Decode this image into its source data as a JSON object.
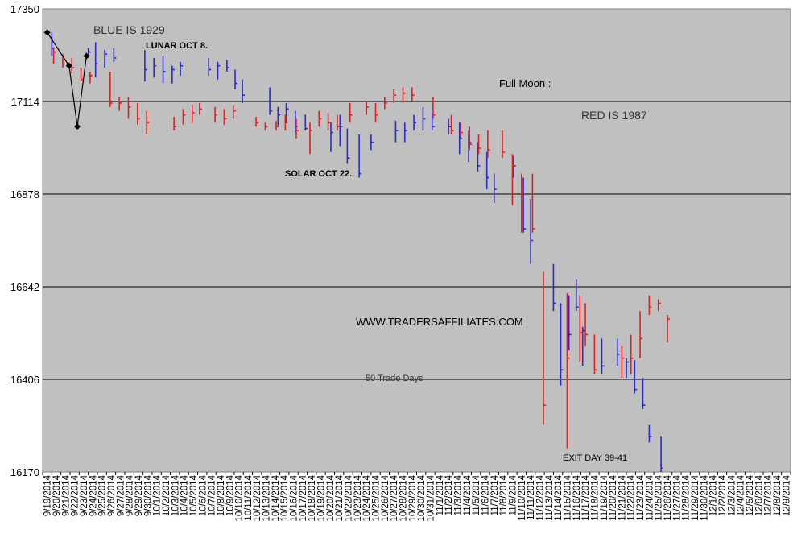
{
  "chart_data": {
    "type": "ohlc",
    "title": "",
    "xlabel": "",
    "ylabel": "",
    "ylim": [
      16170,
      17350
    ],
    "y_ticks": [
      "17350",
      "17114",
      "16878",
      "16642",
      "16406",
      "16170"
    ],
    "y_gridlines": [
      17114,
      16878,
      16642,
      16406
    ],
    "grid": true,
    "background": "#c0c0c0",
    "colors": {
      "blue": "#2a2acc",
      "red": "#e02020",
      "annotation": "#000000"
    },
    "x_labels": [
      "9/19/2014",
      "9/20/2014",
      "9/21/2014",
      "9/22/2014",
      "9/23/2014",
      "9/24/2014",
      "9/25/2014",
      "9/26/2014",
      "9/27/2014",
      "9/28/2014",
      "9/29/2014",
      "9/30/2014",
      "10/1/2014",
      "10/2/2014",
      "10/3/2014",
      "10/4/2014",
      "10/5/2014",
      "10/6/2014",
      "10/7/2014",
      "10/8/2014",
      "10/9/2014",
      "10/10/2014",
      "10/11/2014",
      "10/12/2014",
      "10/13/2014",
      "10/14/2014",
      "10/15/2014",
      "10/16/2014",
      "10/17/2014",
      "10/18/2014",
      "10/19/2014",
      "10/20/2014",
      "10/21/2014",
      "10/22/2014",
      "10/23/2014",
      "10/24/2014",
      "10/25/2014",
      "10/26/2014",
      "10/27/2014",
      "10/28/2014",
      "10/29/2014",
      "10/30/2014",
      "10/31/2014",
      "11/1/2014",
      "11/2/2014",
      "11/3/2014",
      "11/4/2014",
      "11/5/2014",
      "11/6/2014",
      "11/7/2014",
      "11/8/2014",
      "11/9/2014",
      "11/10/2014",
      "11/11/2014",
      "11/12/2014",
      "11/13/2014",
      "11/14/2014",
      "11/15/2014",
      "11/16/2014",
      "11/17/2014",
      "11/18/2014",
      "11/19/2014",
      "11/20/2014",
      "11/21/2014",
      "11/22/2014",
      "11/23/2014",
      "11/24/2014",
      "11/25/2014",
      "11/26/2014",
      "11/27/2014",
      "11/28/2014",
      "11/29/2014",
      "11/30/2014",
      "12/1/2014",
      "12/2/2014",
      "12/3/2014",
      "12/4/2014",
      "12/5/2014",
      "12/6/2014",
      "12/7/2014",
      "12/8/2014",
      "12/9/2014"
    ],
    "series": [
      {
        "name": "BLUE IS 1929",
        "color": "blue",
        "bars": [
          {
            "x": 0.5,
            "high": 17290,
            "low": 17230,
            "close": 17250
          },
          {
            "x": 4.5,
            "high": 17250,
            "low": 17225,
            "close": 17240
          },
          {
            "x": 5.3,
            "high": 17265,
            "low": 17175,
            "close": 17210
          },
          {
            "x": 6.3,
            "high": 17245,
            "low": 17200,
            "close": 17235
          },
          {
            "x": 7.3,
            "high": 17250,
            "low": 17215,
            "close": 17225
          },
          {
            "x": 10.7,
            "high": 17245,
            "low": 17165,
            "close": 17195
          },
          {
            "x": 11.7,
            "high": 17225,
            "low": 17175,
            "close": 17205
          },
          {
            "x": 12.7,
            "high": 17230,
            "low": 17160,
            "close": 17190
          },
          {
            "x": 13.7,
            "high": 17205,
            "low": 17160,
            "close": 17195
          },
          {
            "x": 14.6,
            "high": 17215,
            "low": 17180,
            "close": 17205
          },
          {
            "x": 17.7,
            "high": 17225,
            "low": 17180,
            "close": 17195
          },
          {
            "x": 18.7,
            "high": 17215,
            "low": 17170,
            "close": 17205
          },
          {
            "x": 19.7,
            "high": 17220,
            "low": 17190,
            "close": 17200
          },
          {
            "x": 20.6,
            "high": 17195,
            "low": 17145,
            "close": 17160
          },
          {
            "x": 21.4,
            "high": 17170,
            "low": 17110,
            "close": 17130
          },
          {
            "x": 24.4,
            "high": 17150,
            "low": 17080,
            "close": 17090
          },
          {
            "x": 25.3,
            "high": 17100,
            "low": 17050,
            "close": 17080
          },
          {
            "x": 26.2,
            "high": 17110,
            "low": 17060,
            "close": 17095
          },
          {
            "x": 27.2,
            "high": 17090,
            "low": 17035,
            "close": 17050
          },
          {
            "x": 28.3,
            "high": 17080,
            "low": 17040,
            "close": 17045
          },
          {
            "x": 31.1,
            "high": 17060,
            "low": 16985,
            "close": 17035
          },
          {
            "x": 32.1,
            "high": 17080,
            "low": 17000,
            "close": 17050
          },
          {
            "x": 32.9,
            "high": 17045,
            "low": 16955,
            "close": 16970
          },
          {
            "x": 34.2,
            "high": 17030,
            "low": 16920,
            "close": 16930
          },
          {
            "x": 35.5,
            "high": 17030,
            "low": 16990,
            "close": 17010
          },
          {
            "x": 38.2,
            "high": 17065,
            "low": 17010,
            "close": 17040
          },
          {
            "x": 39.2,
            "high": 17060,
            "low": 17010,
            "close": 17040
          },
          {
            "x": 40.2,
            "high": 17080,
            "low": 17040,
            "close": 17060
          },
          {
            "x": 41.2,
            "high": 17100,
            "low": 17040,
            "close": 17070
          },
          {
            "x": 42.2,
            "high": 17085,
            "low": 17040,
            "close": 17050
          },
          {
            "x": 44.0,
            "high": 17070,
            "low": 17030,
            "close": 17050
          },
          {
            "x": 45.2,
            "high": 17060,
            "low": 16980,
            "close": 17020
          },
          {
            "x": 46.2,
            "high": 17040,
            "low": 16960,
            "close": 17010
          },
          {
            "x": 47.2,
            "high": 17010,
            "low": 16935,
            "close": 16950
          },
          {
            "x": 48.2,
            "high": 16985,
            "low": 16890,
            "close": 16920
          },
          {
            "x": 49.0,
            "high": 16930,
            "low": 16855,
            "close": 16890
          },
          {
            "x": 51.1,
            "high": 16975,
            "low": 16920,
            "close": 16950
          },
          {
            "x": 52.2,
            "high": 16920,
            "low": 16780,
            "close": 16790
          },
          {
            "x": 53.0,
            "high": 16865,
            "low": 16700,
            "close": 16760
          },
          {
            "x": 55.5,
            "high": 16700,
            "low": 16580,
            "close": 16600
          },
          {
            "x": 56.3,
            "high": 16600,
            "low": 16390,
            "close": 16430
          },
          {
            "x": 57.2,
            "high": 16620,
            "low": 16480,
            "close": 16520
          },
          {
            "x": 58.0,
            "high": 16660,
            "low": 16580,
            "close": 16590
          },
          {
            "x": 58.7,
            "high": 16540,
            "low": 16440,
            "close": 16530
          },
          {
            "x": 60.8,
            "high": 16510,
            "low": 16420,
            "close": 16440
          },
          {
            "x": 62.5,
            "high": 16510,
            "low": 16440,
            "close": 16470
          },
          {
            "x": 63.5,
            "high": 16460,
            "low": 16410,
            "close": 16450
          },
          {
            "x": 64.4,
            "high": 16455,
            "low": 16370,
            "close": 16380
          },
          {
            "x": 65.3,
            "high": 16410,
            "low": 16330,
            "close": 16340
          },
          {
            "x": 66.0,
            "high": 16290,
            "low": 16245,
            "close": 16260
          },
          {
            "x": 67.3,
            "high": 16260,
            "low": 16170,
            "close": 16180
          }
        ]
      },
      {
        "name": "RED IS 1987",
        "color": "red",
        "bars": [
          {
            "x": 0.7,
            "high": 17250,
            "low": 17210,
            "close": 17240
          },
          {
            "x": 1.7,
            "high": 17235,
            "low": 17200,
            "close": 17220
          },
          {
            "x": 2.7,
            "high": 17225,
            "low": 17185,
            "close": 17200
          },
          {
            "x": 3.7,
            "high": 17200,
            "low": 17165,
            "close": 17170
          },
          {
            "x": 4.7,
            "high": 17190,
            "low": 17160,
            "close": 17180
          },
          {
            "x": 6.9,
            "high": 17190,
            "low": 17100,
            "close": 17110
          },
          {
            "x": 7.9,
            "high": 17125,
            "low": 17090,
            "close": 17110
          },
          {
            "x": 8.9,
            "high": 17125,
            "low": 17070,
            "close": 17100
          },
          {
            "x": 9.9,
            "high": 17110,
            "low": 17055,
            "close": 17070
          },
          {
            "x": 10.9,
            "high": 17090,
            "low": 17030,
            "close": 17060
          },
          {
            "x": 13.9,
            "high": 17075,
            "low": 17040,
            "close": 17050
          },
          {
            "x": 14.9,
            "high": 17095,
            "low": 17055,
            "close": 17080
          },
          {
            "x": 15.9,
            "high": 17105,
            "low": 17060,
            "close": 17085
          },
          {
            "x": 16.7,
            "high": 17110,
            "low": 17080,
            "close": 17095
          },
          {
            "x": 18.4,
            "high": 17100,
            "low": 17060,
            "close": 17080
          },
          {
            "x": 19.4,
            "high": 17095,
            "low": 17055,
            "close": 17070
          },
          {
            "x": 20.4,
            "high": 17105,
            "low": 17070,
            "close": 17090
          },
          {
            "x": 22.9,
            "high": 17075,
            "low": 17050,
            "close": 17060
          },
          {
            "x": 23.9,
            "high": 17060,
            "low": 17040,
            "close": 17050
          },
          {
            "x": 25.1,
            "high": 17065,
            "low": 17040,
            "close": 17050
          },
          {
            "x": 26.1,
            "high": 17080,
            "low": 17040,
            "close": 17060
          },
          {
            "x": 27.3,
            "high": 17070,
            "low": 17020,
            "close": 17040
          },
          {
            "x": 28.8,
            "high": 17060,
            "low": 16980,
            "close": 17040
          },
          {
            "x": 29.8,
            "high": 17090,
            "low": 17050,
            "close": 17070
          },
          {
            "x": 30.8,
            "high": 17085,
            "low": 17040,
            "close": 17060
          },
          {
            "x": 31.8,
            "high": 17080,
            "low": 17040,
            "close": 17050
          },
          {
            "x": 33.2,
            "high": 17110,
            "low": 17060,
            "close": 17080
          },
          {
            "x": 35.0,
            "high": 17115,
            "low": 17080,
            "close": 17100
          },
          {
            "x": 36.0,
            "high": 17110,
            "low": 17060,
            "close": 17080
          },
          {
            "x": 37.0,
            "high": 17125,
            "low": 17095,
            "close": 17110
          },
          {
            "x": 38.0,
            "high": 17145,
            "low": 17110,
            "close": 17130
          },
          {
            "x": 39.0,
            "high": 17150,
            "low": 17110,
            "close": 17135
          },
          {
            "x": 40.0,
            "high": 17150,
            "low": 17115,
            "close": 17130
          },
          {
            "x": 42.3,
            "high": 17125,
            "low": 17070,
            "close": 17080
          },
          {
            "x": 44.3,
            "high": 17080,
            "low": 17030,
            "close": 17040
          },
          {
            "x": 45.3,
            "high": 17060,
            "low": 17020,
            "close": 17035
          },
          {
            "x": 46.3,
            "high": 17050,
            "low": 16990,
            "close": 17005
          },
          {
            "x": 47.3,
            "high": 17030,
            "low": 16980,
            "close": 16995
          },
          {
            "x": 48.3,
            "high": 17040,
            "low": 16970,
            "close": 16990
          },
          {
            "x": 49.9,
            "high": 17040,
            "low": 16970,
            "close": 16985
          },
          {
            "x": 51.0,
            "high": 16980,
            "low": 16850,
            "close": 16950
          },
          {
            "x": 52.0,
            "high": 16930,
            "low": 16780,
            "close": 16880
          },
          {
            "x": 53.2,
            "high": 16930,
            "low": 16780,
            "close": 16790
          },
          {
            "x": 54.4,
            "high": 16680,
            "low": 16290,
            "close": 16340
          },
          {
            "x": 57.0,
            "high": 16625,
            "low": 16230,
            "close": 16460
          },
          {
            "x": 58.4,
            "high": 16620,
            "low": 16450,
            "close": 16525
          },
          {
            "x": 59.0,
            "high": 16600,
            "low": 16490,
            "close": 16520
          },
          {
            "x": 60.0,
            "high": 16520,
            "low": 16420,
            "close": 16430
          },
          {
            "x": 63.0,
            "high": 16490,
            "low": 16410,
            "close": 16460
          },
          {
            "x": 64.0,
            "high": 16520,
            "low": 16420,
            "close": 16460
          },
          {
            "x": 65.0,
            "high": 16580,
            "low": 16460,
            "close": 16510
          },
          {
            "x": 66.0,
            "high": 16620,
            "low": 16570,
            "close": 16590
          },
          {
            "x": 67.0,
            "high": 16610,
            "low": 16580,
            "close": 16600
          },
          {
            "x": 68.0,
            "high": 16570,
            "low": 16500,
            "close": 16560
          }
        ]
      }
    ],
    "overlay_line": [
      {
        "x": 0.0,
        "y": 17290
      },
      {
        "x": 2.4,
        "y": 17205
      },
      {
        "x": 3.3,
        "y": 17050
      },
      {
        "x": 4.3,
        "y": 17230
      }
    ],
    "annotations": {
      "blue_label": "BLUE IS 1929",
      "lunar": "LUNAR OCT 8.",
      "full_moon": "Full Moon :",
      "red_label": "RED IS 1987",
      "solar": "SOLAR OCT 22.",
      "website": "WWW.TRADERSAFFILIATES.COM",
      "trade_days": "50 Trade Days",
      "exit_day": "EXIT DAY 39-41"
    }
  }
}
